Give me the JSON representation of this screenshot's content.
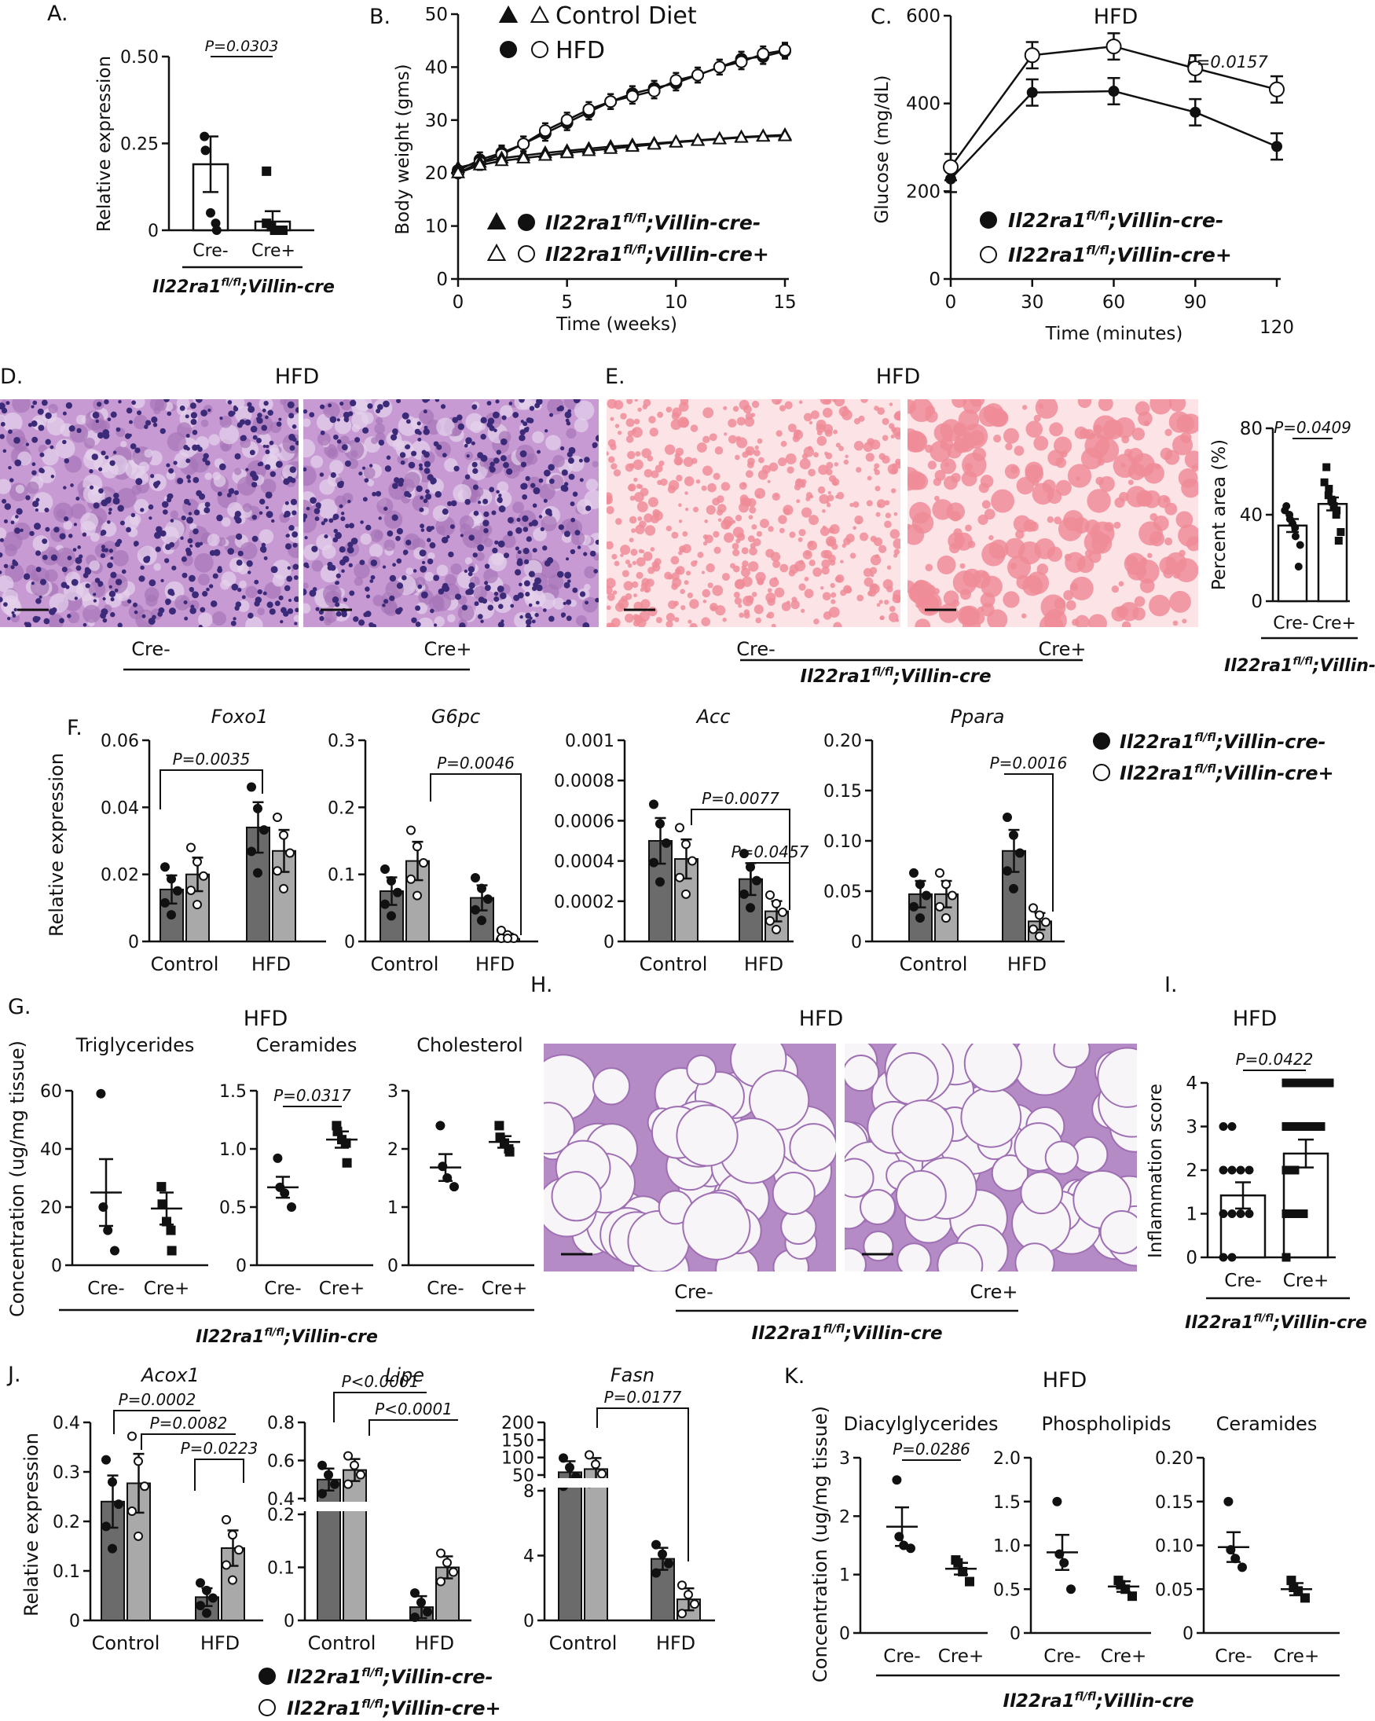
{
  "chart_data": [
    {
      "panel": "A.",
      "type": "bar",
      "ylabel": "Relative expression",
      "ylim": [
        0,
        0.5
      ],
      "yticks": [
        "0",
        "0.25",
        "0.50"
      ],
      "categories": [
        "Cre-",
        "Cre+"
      ],
      "values": [
        0.19,
        0.025
      ],
      "sem": [
        0.08,
        0.03
      ],
      "points": [
        [
          0.27,
          0.23,
          0.05,
          0.02,
          0.0
        ],
        [
          0.17,
          0.02,
          0.01,
          0.0,
          0.0,
          0.0
        ]
      ],
      "annotation": "P=0.0303",
      "genotype": "Il22ra1fl/fl;Villin-cre"
    },
    {
      "panel": "B.",
      "type": "line",
      "ylabel": "Body weight (gms)",
      "xlabel": "Time (weeks)",
      "ylim": [
        0,
        50
      ],
      "xlim": [
        0,
        15
      ],
      "yticks": [
        "0",
        "10",
        "20",
        "30",
        "40",
        "50"
      ],
      "xticks": [
        "0",
        "5",
        "10",
        "15"
      ],
      "x": [
        0,
        1,
        2,
        3,
        4,
        5,
        6,
        7,
        8,
        9,
        10,
        11,
        12,
        13,
        14,
        15
      ],
      "series": [
        {
          "group": "hfd-cre-minus",
          "values": [
            20.5,
            22.5,
            23.8,
            25.5,
            27.5,
            29.5,
            31.5,
            33.5,
            35,
            36,
            37,
            38.5,
            40,
            41.5,
            42,
            43
          ]
        },
        {
          "group": "hfd-cre-plus",
          "values": [
            20,
            22,
            23.5,
            25.5,
            28,
            30,
            32,
            33.5,
            34.5,
            35.5,
            37.5,
            38.5,
            40,
            41,
            42.5,
            43.2
          ]
        },
        {
          "group": "control-cre-minus",
          "values": [
            21,
            22,
            22.8,
            23.3,
            23.8,
            24.2,
            24.6,
            25,
            25.3,
            25.6,
            25.9,
            26.2,
            26.5,
            26.8,
            27,
            27.2
          ]
        },
        {
          "group": "control-cre-plus",
          "values": [
            20,
            21.5,
            22.3,
            22.8,
            23.3,
            23.8,
            24.2,
            24.6,
            25,
            25.4,
            25.8,
            26.1,
            26.4,
            26.7,
            26.9,
            27
          ]
        }
      ],
      "legend_top": [
        "Control Diet",
        "HFD"
      ],
      "legend_bottom": [
        "Il22ra1fl/fl;Villin-cre-",
        "Il22ra1fl/fl;Villin-cre+"
      ]
    },
    {
      "panel": "C.",
      "type": "line",
      "title": "HFD",
      "ylabel": "Glucose (mg/dL)",
      "xlabel": "Time (minutes)",
      "ylim": [
        0,
        600
      ],
      "xlim": [
        0,
        120
      ],
      "yticks": [
        "0",
        "200",
        "400",
        "600"
      ],
      "xticks": [
        "0",
        "30",
        "60",
        "90",
        "120"
      ],
      "x": [
        0,
        30,
        60,
        90,
        120
      ],
      "series": [
        {
          "group": "cre-minus",
          "values": [
            228,
            425,
            428,
            380,
            302
          ]
        },
        {
          "group": "cre-plus",
          "values": [
            255,
            510,
            530,
            480,
            432
          ]
        }
      ],
      "annotation": "P=0.0157",
      "legend": [
        "Il22ra1fl/fl;Villin-cre-",
        "Il22ra1fl/fl;Villin-cre+"
      ]
    },
    {
      "panel": "E.",
      "type": "bar",
      "ylabel": "Percent area (%)",
      "ylim": [
        0,
        80
      ],
      "yticks": [
        "0",
        "40",
        "80"
      ],
      "categories": [
        "Cre-",
        "Cre+"
      ],
      "values": [
        35,
        45
      ],
      "sem": [
        3,
        3
      ],
      "points": [
        [
          44,
          42,
          40,
          38,
          36,
          34,
          30,
          26,
          16
        ],
        [
          62,
          55,
          52,
          49,
          47,
          46,
          44,
          42,
          40,
          32,
          28
        ]
      ],
      "annotation": "P=0.0409",
      "genotype": "Il22ra1fl/fl;Villin-cre"
    },
    {
      "panel": "F.",
      "type": "bar",
      "title": "Foxo1",
      "ylabel": "Relative expression",
      "ylim": [
        0,
        0.06
      ],
      "yticks": [
        "0",
        "0.02",
        "0.04",
        "0.06"
      ],
      "categories": [
        "Control",
        "HFD"
      ],
      "series": [
        {
          "group": "cre-minus",
          "values": [
            0.0155,
            0.034
          ]
        },
        {
          "group": "cre-plus",
          "values": [
            0.02,
            0.027
          ]
        }
      ],
      "annotations": [
        "P=0.0035"
      ]
    },
    {
      "panel": "F.",
      "type": "bar",
      "title": "G6pc",
      "ylim": [
        0,
        0.3
      ],
      "yticks": [
        "0",
        "0.1",
        "0.2",
        "0.3"
      ],
      "categories": [
        "Control",
        "HFD"
      ],
      "series": [
        {
          "group": "cre-minus",
          "values": [
            0.075,
            0.065
          ]
        },
        {
          "group": "cre-plus",
          "values": [
            0.12,
            0.004
          ]
        }
      ],
      "annotations": [
        "P=0.0046"
      ]
    },
    {
      "panel": "F.",
      "type": "bar",
      "title": "Acc",
      "ylim": [
        0,
        0.001
      ],
      "yticks": [
        "0",
        "0.0002",
        "0.0004",
        "0.0006",
        "0.0008",
        "0.001"
      ],
      "categories": [
        "Control",
        "HFD"
      ],
      "series": [
        {
          "group": "cre-minus",
          "values": [
            0.0005,
            0.00031
          ]
        },
        {
          "group": "cre-plus",
          "values": [
            0.00041,
            0.00015
          ]
        }
      ],
      "annotations": [
        "P=0.0077",
        "P=0.0457"
      ]
    },
    {
      "panel": "F.",
      "type": "bar",
      "title": "Ppara",
      "ylim": [
        0,
        0.2
      ],
      "yticks": [
        "0",
        "0.05",
        "0.10",
        "0.15",
        "0.20"
      ],
      "categories": [
        "Control",
        "HFD"
      ],
      "series": [
        {
          "group": "cre-minus",
          "values": [
            0.047,
            0.09
          ]
        },
        {
          "group": "cre-plus",
          "values": [
            0.047,
            0.02
          ]
        }
      ],
      "annotations": [
        "P=0.0016"
      ],
      "legend": [
        "Il22ra1fl/fl;Villin-cre-",
        "Il22ra1fl/fl;Villin-cre+"
      ]
    },
    {
      "panel": "G.",
      "type": "scatter",
      "title": "Triglycerides",
      "group_title": "HFD",
      "ylabel": "Concentration (ug/mg tissue)",
      "ylim": [
        0,
        60
      ],
      "yticks": [
        "0",
        "20",
        "40",
        "60"
      ],
      "categories": [
        "Cre-",
        "Cre+"
      ],
      "means": [
        25,
        19.5
      ],
      "sem": [
        11.5,
        5.5
      ],
      "points": [
        [
          59,
          20,
          12,
          5
        ],
        [
          27,
          21,
          15,
          12,
          5
        ]
      ]
    },
    {
      "panel": "G.",
      "type": "scatter",
      "title": "Ceramides",
      "ylim": [
        0,
        1.5
      ],
      "yticks": [
        "0",
        "0.5",
        "1.0",
        "1.5"
      ],
      "categories": [
        "Cre-",
        "Cre+"
      ],
      "means": [
        0.67,
        1.08
      ],
      "sem": [
        0.09,
        0.07
      ],
      "points": [
        [
          0.92,
          0.67,
          0.62,
          0.5
        ],
        [
          1.2,
          1.15,
          1.08,
          1.05,
          0.88
        ]
      ],
      "annotation": "P=0.0317"
    },
    {
      "panel": "G.",
      "type": "scatter",
      "title": "Cholesterol",
      "ylim": [
        0,
        3
      ],
      "yticks": [
        "0",
        "1",
        "2",
        "3"
      ],
      "categories": [
        "Cre-",
        "Cre+"
      ],
      "means": [
        1.68,
        2.12
      ],
      "sem": [
        0.23,
        0.1
      ],
      "points": [
        [
          2.4,
          1.7,
          1.5,
          1.35
        ],
        [
          2.4,
          2.2,
          2.1,
          2.0,
          1.95
        ]
      ],
      "genotype": "Il22ra1fl/fl;Villin-cre"
    },
    {
      "panel": "I.",
      "type": "bar",
      "title": "HFD",
      "ylabel": "Inflammation score",
      "ylim": [
        0,
        4
      ],
      "yticks": [
        "0",
        "1",
        "2",
        "3",
        "4"
      ],
      "categories": [
        "Cre-",
        "Cre+"
      ],
      "values": [
        1.42,
        2.38
      ],
      "sem": [
        0.3,
        0.32
      ],
      "points": [
        [
          3,
          3,
          2,
          2,
          2,
          2,
          1,
          1,
          1,
          1,
          0,
          0
        ],
        [
          4,
          4,
          4,
          4,
          4,
          4,
          3,
          3,
          3,
          3,
          3,
          2,
          2,
          1,
          1,
          1,
          0
        ]
      ],
      "annotation": "P=0.0422",
      "genotype": "Il22ra1fl/fl;Villin-cre"
    },
    {
      "panel": "J.",
      "type": "bar",
      "title": "Acox1",
      "ylabel": "Relative expression",
      "ylim": [
        0,
        0.4
      ],
      "yticks": [
        "0",
        "0.1",
        "0.2",
        "0.3",
        "0.4"
      ],
      "categories": [
        "Control",
        "HFD"
      ],
      "series": [
        {
          "group": "cre-minus",
          "values": [
            0.24,
            0.047
          ]
        },
        {
          "group": "cre-plus",
          "values": [
            0.277,
            0.146
          ]
        }
      ],
      "annotations": [
        "P=0.0002",
        "P=0.0082",
        "P=0.0223"
      ]
    },
    {
      "panel": "J.",
      "type": "bar",
      "title": "Lipe",
      "axis_break": true,
      "yticks": [
        "0",
        "0.1",
        "0.2",
        "0.4",
        "0.6",
        "0.8"
      ],
      "categories": [
        "Control",
        "HFD"
      ],
      "series": [
        {
          "group": "cre-minus",
          "values": [
            0.5,
            0.025
          ]
        },
        {
          "group": "cre-plus",
          "values": [
            0.55,
            0.1
          ]
        }
      ],
      "annotations": [
        "P<0.0001",
        "P<0.0001"
      ]
    },
    {
      "panel": "J.",
      "type": "bar",
      "title": "Fasn",
      "axis_break": true,
      "yticks": [
        "0",
        "4",
        "8",
        "50",
        "100",
        "150",
        "200"
      ],
      "categories": [
        "Control",
        "HFD"
      ],
      "series": [
        {
          "group": "cre-minus",
          "values": [
            58,
            3.8
          ]
        },
        {
          "group": "cre-plus",
          "values": [
            67,
            1.3
          ]
        }
      ],
      "annotations": [
        "P=0.0177"
      ],
      "legend": [
        "Il22ra1fl/fl;Villin-cre-",
        "Il22ra1fl/fl;Villin-cre+"
      ]
    },
    {
      "panel": "K.",
      "type": "scatter",
      "title": "Diacylglycerides",
      "group_title": "HFD",
      "ylabel": "Concentration (ug/mg tissue)",
      "ylim": [
        0,
        3
      ],
      "yticks": [
        "0",
        "1",
        "2",
        "3"
      ],
      "categories": [
        "Cre-",
        "Cre+"
      ],
      "means": [
        1.82,
        1.1
      ],
      "sem": [
        0.33,
        0.1
      ],
      "points": [
        [
          2.62,
          1.65,
          1.5,
          1.45
        ],
        [
          1.25,
          1.2,
          1.05,
          0.88
        ]
      ],
      "annotation": "P=0.0286"
    },
    {
      "panel": "K.",
      "type": "scatter",
      "title": "Phospholipids",
      "ylim": [
        0,
        2
      ],
      "yticks": [
        "0",
        "0.5",
        "1.0",
        "1.5",
        "2.0"
      ],
      "categories": [
        "Cre-",
        "Cre+"
      ],
      "means": [
        0.92,
        0.53
      ],
      "sem": [
        0.2,
        0.06
      ],
      "points": [
        [
          1.5,
          0.9,
          0.8,
          0.5
        ],
        [
          0.6,
          0.55,
          0.5,
          0.42
        ]
      ]
    },
    {
      "panel": "K.",
      "type": "scatter",
      "title": "Ceramides",
      "ylim": [
        0,
        0.2
      ],
      "yticks": [
        "0",
        "0.05",
        "0.10",
        "0.15",
        "0.20"
      ],
      "categories": [
        "Cre-",
        "Cre+"
      ],
      "means": [
        0.098,
        0.05
      ],
      "sem": [
        0.017,
        0.007
      ],
      "points": [
        [
          0.15,
          0.095,
          0.085,
          0.075
        ],
        [
          0.06,
          0.052,
          0.048,
          0.04
        ]
      ],
      "genotype": "Il22ra1fl/fl;Villin-cre"
    }
  ],
  "micrographs": {
    "D": {
      "panel": "D.",
      "title": "HFD",
      "left": "Cre-",
      "right": "Cre+"
    },
    "E": {
      "panel": "E.",
      "title": "HFD",
      "left": "Cre-",
      "right": "Cre+",
      "genotype": "Il22ra1fl/fl;Villin-cre"
    },
    "H": {
      "panel": "H.",
      "title": "HFD",
      "left": "Cre-",
      "right": "Cre+",
      "genotype": "Il22ra1fl/fl;Villin-cre"
    }
  },
  "labels": {
    "genotype_full": "Il22ra1fl/fl;Villin-cre",
    "cre_minus": "Il22ra1fl/fl;Villin-cre-",
    "cre_plus": "Il22ra1fl/fl;Villin-cre+"
  },
  "colors": {
    "cre_minus_bar": "#6b6b6b",
    "cre_plus_bar": "#a9a9a9",
    "he_stain": "#b57fc4",
    "oil_red": "#f2a3ae"
  }
}
